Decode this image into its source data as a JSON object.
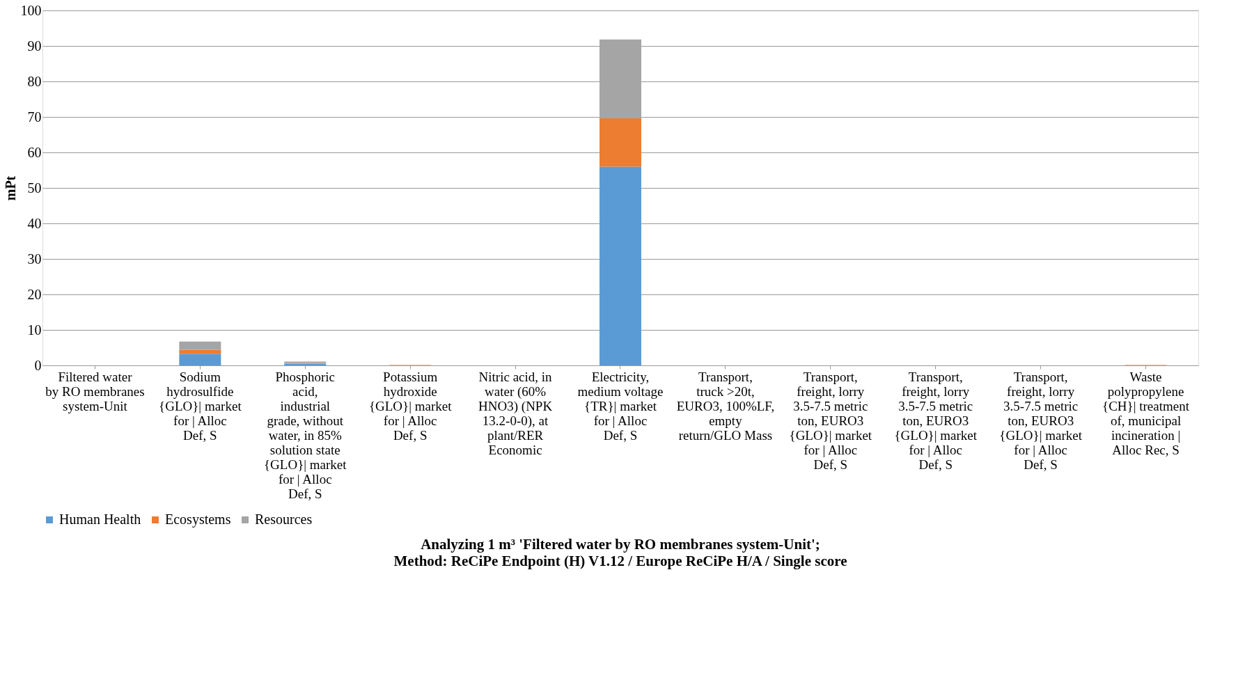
{
  "chart_data": {
    "type": "bar",
    "stacked": true,
    "title": "Analyzing 1 m³ 'Filtered water by RO membranes system-Unit';",
    "subtitle": "Method: ReCiPe Endpoint (H) V1.12 / Europe ReCiPe H/A / Single score",
    "ylabel": "mPt",
    "categories": [
      "Filtered water by RO membranes system-Unit",
      "Sodium hydrosulfide {GLO}| market for | Alloc Def, S",
      "Phosphoric acid, industrial grade, without water, in 85% solution state {GLO}| market for | Alloc Def, S",
      "Potassium hydroxide {GLO}| market for | Alloc Def, S",
      "Nitric acid, in water (60% HNO3) (NPK 13.2-0-0), at plant/RER Economic",
      "Electricity, medium voltage {TR}| market for | Alloc Def, S",
      "Transport, truck >20t, EURO3, 100%LF, empty return/GLO Mass",
      "Transport, freight, lorry 3.5-7.5 metric ton, EURO3 {GLO}| market for | Alloc Def, S",
      "Transport, freight, lorry 3.5-7.5 metric ton, EURO3 {GLO}| market for | Alloc Def, S",
      "Transport, freight, lorry 3.5-7.5 metric ton, EURO3 {GLO}| market for | Alloc Def, S",
      "Waste polypropylene {CH}| treatment of, municipal incineration | Alloc Rec, S"
    ],
    "series": [
      {
        "name": "Human Health",
        "color": "#5b9bd5",
        "values": [
          0,
          3.3,
          0.5,
          null,
          0,
          56,
          0,
          0,
          0,
          0,
          null
        ]
      },
      {
        "name": "Ecosystems",
        "color": "#ed7d31",
        "values": [
          0,
          1.1,
          0.2,
          0.1,
          0,
          13.6,
          0,
          0,
          0,
          0,
          0.1
        ]
      },
      {
        "name": "Resources",
        "color": "#a5a5a5",
        "values": [
          0,
          2.3,
          0.4,
          null,
          null,
          22.2,
          0,
          0,
          0,
          0,
          null
        ]
      }
    ],
    "ylim": [
      0,
      100
    ],
    "yticks": [
      0,
      10,
      20,
      30,
      40,
      50,
      60,
      70,
      80,
      90,
      100
    ],
    "grid": "y",
    "legend": "bottom"
  }
}
